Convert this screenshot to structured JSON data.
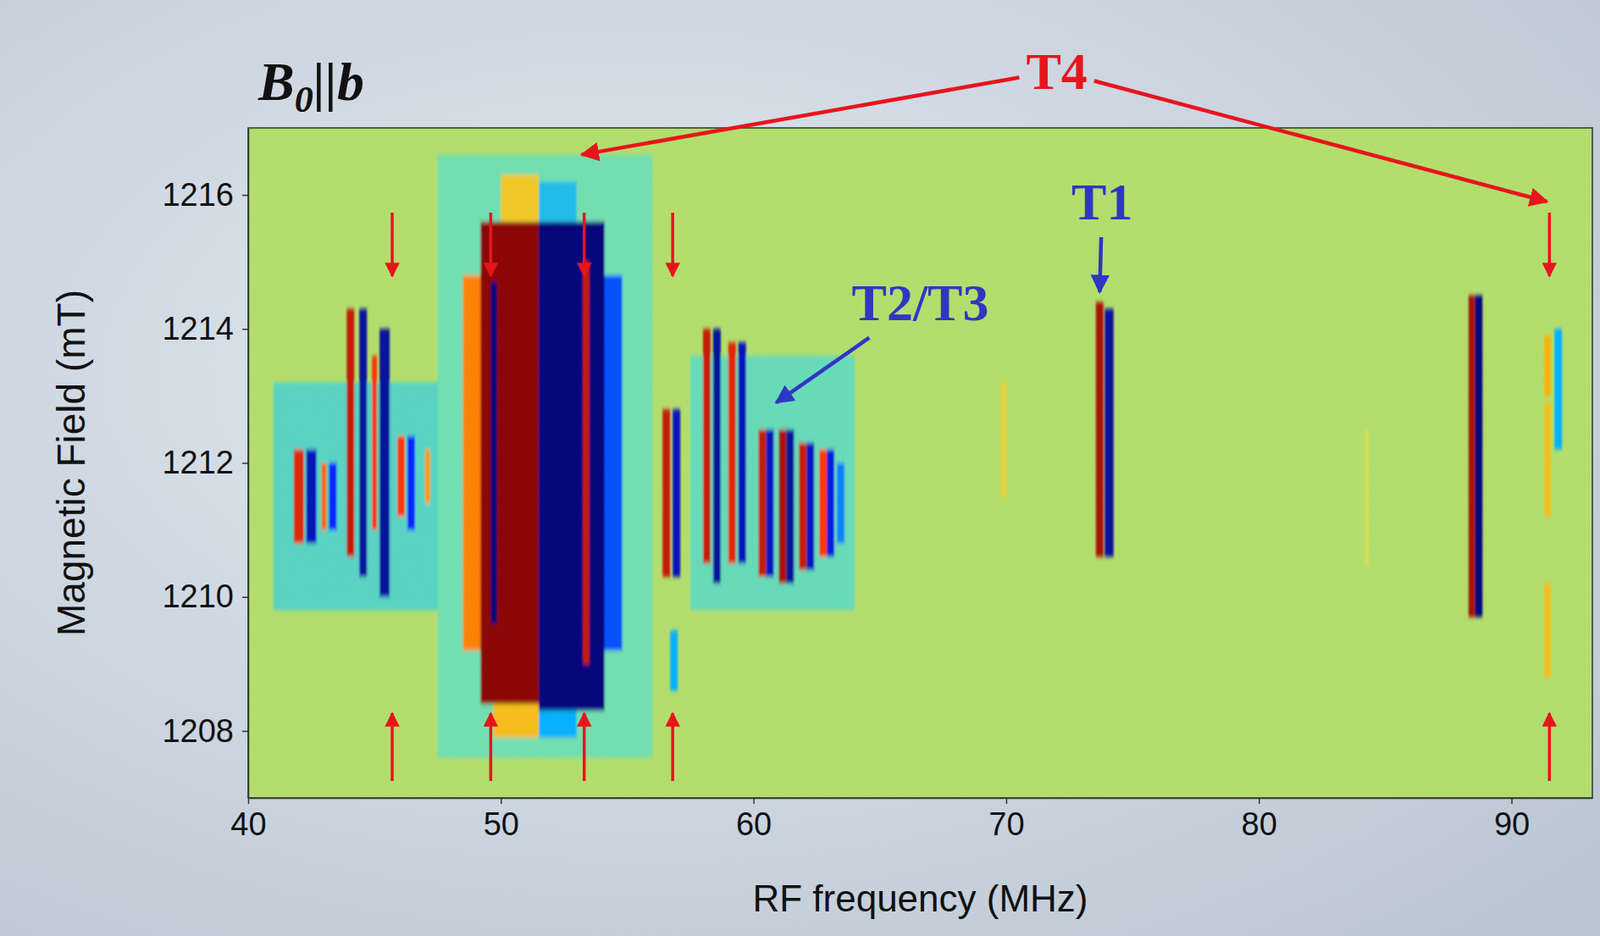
{
  "chart_data": {
    "type": "heatmap",
    "title": "B0||b",
    "x_label": "RF frequency (MHz)",
    "y_label": "Magnetic Field (mT)",
    "xlim": [
      40,
      93.2
    ],
    "ylim": [
      1207,
      1217
    ],
    "xticks": [
      40,
      50,
      60,
      70,
      80,
      90
    ],
    "yticks": [
      1208,
      1210,
      1212,
      1214,
      1216
    ],
    "zlim": [
      -1,
      1
    ],
    "cells": [
      [
        41.0,
        48.5,
        1209.8,
        1213.2,
        -0.15
      ],
      [
        57.5,
        64.0,
        1209.8,
        1213.6,
        -0.12
      ],
      [
        47.5,
        56.0,
        1207.6,
        1216.6,
        -0.1
      ],
      [
        41.8,
        42.2,
        1210.8,
        1212.2,
        0.7
      ],
      [
        42.3,
        42.7,
        1210.8,
        1212.2,
        -0.8
      ],
      [
        42.9,
        43.1,
        1211.0,
        1212.0,
        0.5
      ],
      [
        43.2,
        43.5,
        1211.0,
        1212.0,
        -0.6
      ],
      [
        43.9,
        44.2,
        1210.6,
        1214.3,
        0.8
      ],
      [
        44.4,
        44.7,
        1210.3,
        1214.3,
        -0.9
      ],
      [
        44.9,
        45.1,
        1211.0,
        1213.6,
        0.6
      ],
      [
        45.2,
        45.6,
        1210.0,
        1214.0,
        -0.9
      ],
      [
        45.9,
        46.2,
        1211.2,
        1212.4,
        0.6
      ],
      [
        46.3,
        46.6,
        1211.0,
        1212.4,
        -0.6
      ],
      [
        47.0,
        47.2,
        1211.4,
        1212.2,
        0.4
      ],
      [
        48.5,
        51.5,
        1209.2,
        1214.8,
        0.45
      ],
      [
        49.2,
        51.5,
        1208.4,
        1215.6,
        1
      ],
      [
        51.5,
        54.8,
        1209.2,
        1214.8,
        -0.5
      ],
      [
        51.5,
        54.1,
        1208.3,
        1215.6,
        -1
      ],
      [
        50.0,
        51.5,
        1215.6,
        1216.3,
        0.25
      ],
      [
        51.5,
        53.0,
        1215.6,
        1216.2,
        -0.25
      ],
      [
        49.7,
        51.5,
        1207.9,
        1208.4,
        0.3
      ],
      [
        51.5,
        53.0,
        1207.9,
        1208.3,
        -0.3
      ],
      [
        49.6,
        49.85,
        1209.6,
        1214.7,
        -1
      ],
      [
        53.25,
        53.5,
        1209.0,
        1215.0,
        0.8
      ],
      [
        56.4,
        56.7,
        1210.3,
        1212.8,
        0.8
      ],
      [
        56.8,
        57.1,
        1210.3,
        1212.8,
        -0.8
      ],
      [
        56.7,
        57.0,
        1208.6,
        1209.5,
        -0.3
      ],
      [
        58.0,
        58.3,
        1210.5,
        1214.0,
        0.8
      ],
      [
        58.4,
        58.7,
        1210.2,
        1214.0,
        -0.9
      ],
      [
        59.0,
        59.3,
        1210.5,
        1213.8,
        0.7
      ],
      [
        59.4,
        59.7,
        1210.5,
        1213.8,
        -0.8
      ],
      [
        60.2,
        60.5,
        1210.3,
        1212.5,
        0.8
      ],
      [
        60.5,
        60.8,
        1210.3,
        1212.5,
        -0.8
      ],
      [
        61.0,
        61.3,
        1210.2,
        1212.5,
        0.9
      ],
      [
        61.3,
        61.6,
        1210.2,
        1212.5,
        -0.9
      ],
      [
        61.8,
        62.1,
        1210.4,
        1212.3,
        0.8
      ],
      [
        62.1,
        62.4,
        1210.4,
        1212.3,
        -0.8
      ],
      [
        62.6,
        62.9,
        1210.6,
        1212.2,
        0.6
      ],
      [
        62.9,
        63.2,
        1210.6,
        1212.2,
        -0.7
      ],
      [
        63.3,
        63.6,
        1210.8,
        1212.0,
        -0.4
      ],
      [
        69.8,
        70.0,
        1211.5,
        1213.2,
        0.2
      ],
      [
        73.55,
        73.85,
        1210.6,
        1214.4,
        0.9
      ],
      [
        73.9,
        74.25,
        1210.6,
        1214.3,
        -0.9
      ],
      [
        84.2,
        84.35,
        1210.5,
        1212.5,
        0.12
      ],
      [
        88.3,
        88.55,
        1209.7,
        1214.5,
        0.9
      ],
      [
        88.55,
        88.85,
        1209.7,
        1214.5,
        -1
      ],
      [
        91.3,
        91.55,
        1213.0,
        1213.9,
        0.35
      ],
      [
        91.3,
        91.55,
        1211.2,
        1212.9,
        0.3
      ],
      [
        91.3,
        91.55,
        1208.8,
        1210.2,
        0.3
      ],
      [
        91.7,
        92.0,
        1212.2,
        1214.0,
        -0.3
      ]
    ],
    "markers": {
      "x": [
        45.7,
        49.6,
        53.3,
        56.8,
        91.5
      ],
      "color": "#e8141c"
    },
    "annotations": [
      {
        "text": "T4",
        "color": "#e8141c",
        "x": 72.0,
        "y": 1217.85,
        "arrows": [
          [
            53.2,
            1216.6
          ],
          [
            91.4,
            1215.9
          ]
        ]
      },
      {
        "text": "T1",
        "color": "#2f36c4",
        "x": 73.8,
        "y": 1215.9,
        "arrows": [
          [
            73.7,
            1214.55
          ]
        ]
      },
      {
        "text": "T2/T3",
        "color": "#2f36c4",
        "x": 66.6,
        "y": 1214.4,
        "arrows": [
          [
            60.9,
            1212.9
          ]
        ]
      }
    ]
  }
}
